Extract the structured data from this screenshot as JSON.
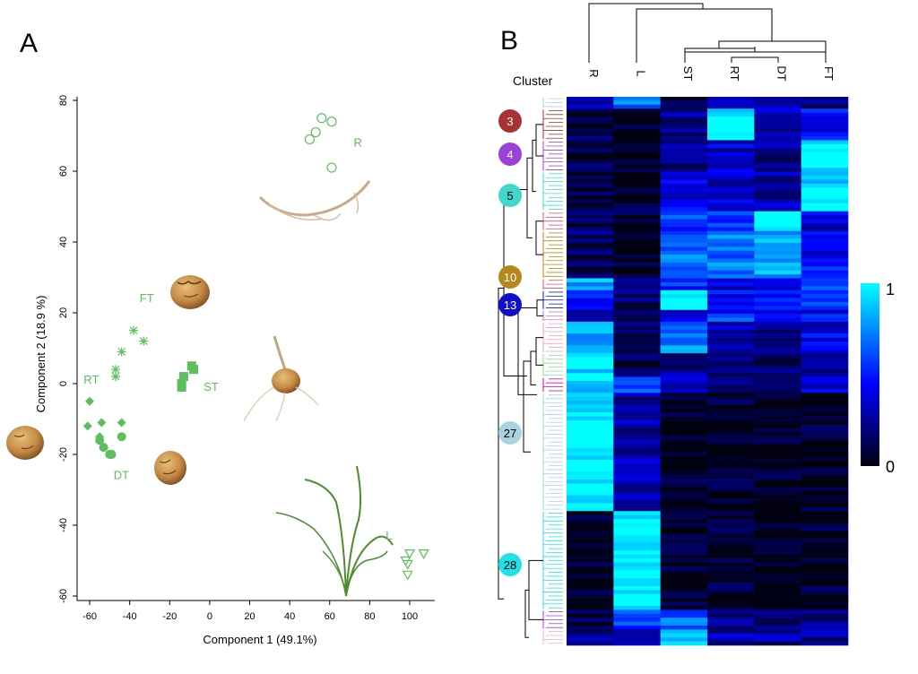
{
  "chart_data": [
    {
      "panel_label": "A",
      "type": "scatter",
      "xlabel": "Component 1 (49.1%)",
      "ylabel": "Component 2 (18.9 %)",
      "xlim": [
        -65,
        110
      ],
      "ylim": [
        -62,
        82
      ],
      "xticks": [
        -60,
        -40,
        -20,
        0,
        20,
        40,
        60,
        80,
        100
      ],
      "yticks": [
        -60,
        -40,
        -20,
        0,
        20,
        40,
        60,
        80
      ],
      "point_color": "#5cbf5c",
      "grid": false,
      "series": [
        {
          "name": "R",
          "marker": "circle-open",
          "label_at": [
            72,
            67
          ],
          "points": [
            [
              56,
              75
            ],
            [
              61,
              74
            ],
            [
              53,
              71
            ],
            [
              50,
              69
            ],
            [
              61,
              61
            ]
          ]
        },
        {
          "name": "FT",
          "marker": "asterisk",
          "label_at": [
            -35,
            23
          ],
          "points": [
            [
              -38,
              15
            ],
            [
              -33,
              12
            ],
            [
              -44,
              9
            ],
            [
              -47,
              4
            ],
            [
              -47,
              2
            ]
          ]
        },
        {
          "name": "ST",
          "marker": "square",
          "label_at": [
            -3,
            -2
          ],
          "points": [
            [
              -9,
              5
            ],
            [
              -8,
              4
            ],
            [
              -13,
              2
            ],
            [
              -14,
              0
            ],
            [
              -14,
              -1
            ]
          ]
        },
        {
          "name": "RT",
          "marker": "diamond",
          "label_at": [
            -63,
            0
          ],
          "points": [
            [
              -60,
              -5
            ],
            [
              -54,
              -11
            ],
            [
              -44,
              -11
            ],
            [
              -61,
              -12
            ],
            [
              -55,
              -15
            ]
          ]
        },
        {
          "name": "DT",
          "marker": "circle-filled",
          "label_at": [
            -48,
            -27
          ],
          "points": [
            [
              -55,
              -16
            ],
            [
              -44,
              -15
            ],
            [
              -53,
              -18
            ],
            [
              -50,
              -20
            ],
            [
              -49,
              -20
            ]
          ]
        },
        {
          "name": "L",
          "marker": "triangle-down-open",
          "label_at": [
            88,
            -44
          ],
          "points": [
            [
              100,
              -48
            ],
            [
              107,
              -48
            ],
            [
              98,
              -50
            ],
            [
              99,
              -51
            ],
            [
              99,
              -54
            ]
          ]
        }
      ]
    },
    {
      "panel_label": "B",
      "type": "heatmap",
      "column_header": "Cluster",
      "columns": [
        "R",
        "L",
        "ST",
        "RT",
        "DT",
        "FT"
      ],
      "color_scale": {
        "min": 0,
        "max": 1,
        "low_color": "#000010",
        "mid_color": "#0000ff",
        "high_color": "#00ffff",
        "min_label": "0",
        "max_label": "1"
      },
      "labeled_clusters": [
        {
          "id": "3",
          "color": "#a83232"
        },
        {
          "id": "4",
          "color": "#9b40d8"
        },
        {
          "id": "5",
          "color": "#40d8cc"
        },
        {
          "id": "10",
          "color": "#b8861e"
        },
        {
          "id": "13",
          "color": "#1010cc"
        },
        {
          "id": "27",
          "color": "#a8d4e0"
        },
        {
          "id": "28",
          "color": "#20e0e8"
        }
      ],
      "row_blocks": [
        {
          "rows": 3,
          "values": [
            0.35,
            0.7,
            0.15,
            0.4,
            0.3,
            0.2
          ],
          "dendro_color": "#a8d4e0"
        },
        {
          "rows": 8,
          "values": [
            0.1,
            0.05,
            0.25,
            1.0,
            0.3,
            0.45
          ],
          "dendro_color": "#a83232"
        },
        {
          "rows": 8,
          "values": [
            0.12,
            0.03,
            0.25,
            0.35,
            0.25,
            1.0
          ],
          "dendro_color": "#9b40d8"
        },
        {
          "rows": 10,
          "values": [
            0.15,
            0.04,
            0.4,
            0.35,
            0.3,
            0.95
          ],
          "dendro_color": "#40d8cc"
        },
        {
          "rows": 5,
          "values": [
            0.15,
            0.05,
            0.55,
            0.5,
            1.0,
            0.4
          ],
          "dendro_color": "#e05070"
        },
        {
          "rows": 12,
          "values": [
            0.15,
            0.04,
            0.7,
            0.7,
            0.8,
            0.45
          ],
          "dendro_color": "#b8861e"
        },
        {
          "rows": 3,
          "values": [
            0.8,
            0.25,
            0.55,
            0.4,
            0.4,
            0.55
          ],
          "dendro_color": "#e05070"
        },
        {
          "rows": 5,
          "values": [
            0.45,
            0.15,
            1.0,
            0.45,
            0.55,
            0.65
          ],
          "dendro_color": "#1010cc"
        },
        {
          "rows": 3,
          "values": [
            0.4,
            0.2,
            0.35,
            0.55,
            0.35,
            0.45
          ],
          "dendro_color": "#e070c0"
        },
        {
          "rows": 8,
          "values": [
            0.85,
            0.15,
            0.75,
            0.3,
            0.25,
            0.4
          ],
          "dendro_color": "#f0a0b8"
        },
        {
          "rows": 6,
          "values": [
            0.95,
            0.12,
            0.25,
            0.2,
            0.2,
            0.3
          ],
          "dendro_color": "#90e090"
        },
        {
          "rows": 4,
          "values": [
            0.95,
            0.55,
            0.3,
            0.25,
            0.2,
            0.35
          ],
          "dendro_color": "#e000a0"
        },
        {
          "rows": 30,
          "values": [
            1.0,
            0.3,
            0.04,
            0.03,
            0.02,
            0.04
          ],
          "dendro_color": "#a8d4e0"
        },
        {
          "rows": 25,
          "values": [
            0.03,
            1.0,
            0.04,
            0.04,
            0.02,
            0.04
          ],
          "dendro_color": "#20e0e8"
        },
        {
          "rows": 5,
          "values": [
            0.15,
            0.55,
            0.65,
            0.2,
            0.15,
            0.25
          ],
          "dendro_color": "#9b40d8"
        },
        {
          "rows": 4,
          "values": [
            0.25,
            0.2,
            0.9,
            0.3,
            0.25,
            0.25
          ],
          "dendro_color": "#f0b0c0"
        }
      ]
    }
  ]
}
